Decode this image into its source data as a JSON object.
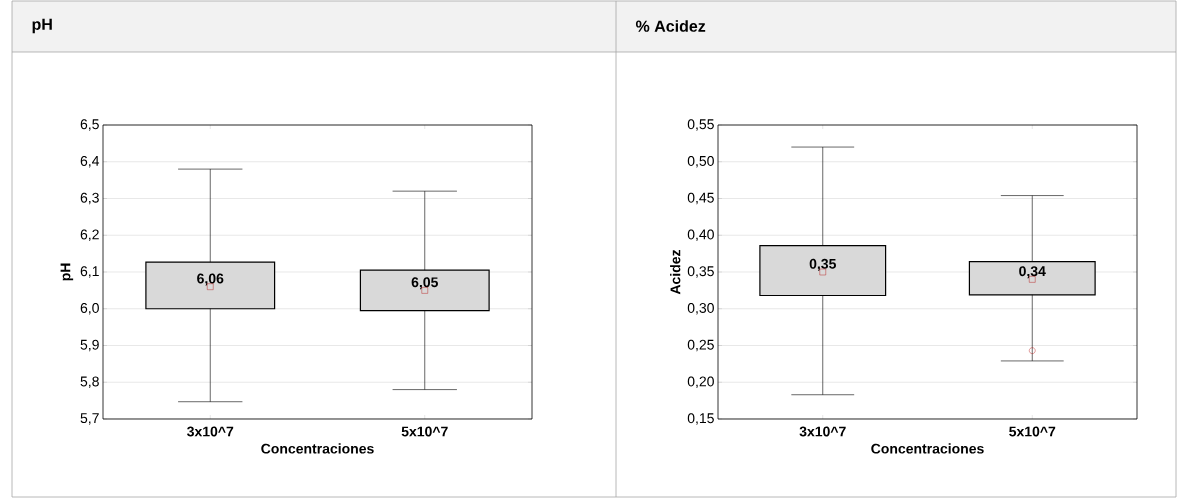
{
  "chart_data": [
    {
      "type": "box",
      "title": "pH",
      "xlabel": "Concentraciones",
      "ylabel": "pH",
      "categories": [
        "3x10^7",
        "5x10^7"
      ],
      "boxes": [
        {
          "low": 5.747,
          "q1": 6.0,
          "median": 6.06,
          "q3": 6.127,
          "high": 6.38
        },
        {
          "low": 5.78,
          "q1": 5.995,
          "median": 6.05,
          "q3": 6.105,
          "high": 6.32
        }
      ],
      "value_labels": [
        "6,06",
        "6,05"
      ],
      "ylim": [
        5.7,
        6.5
      ],
      "yticks": [
        {
          "value": 5.7,
          "label": "5,7"
        },
        {
          "value": 5.8,
          "label": "5,8"
        },
        {
          "value": 5.9,
          "label": "5,9"
        },
        {
          "value": 6.0,
          "label": "6,0"
        },
        {
          "value": 6.1,
          "label": "6,1"
        },
        {
          "value": 6.2,
          "label": "6,2"
        },
        {
          "value": 6.3,
          "label": "6,3"
        },
        {
          "value": 6.4,
          "label": "6,4"
        },
        {
          "value": 6.5,
          "label": "6,5"
        }
      ],
      "grid": "y",
      "marker": "square"
    },
    {
      "type": "box",
      "title": "% Acidez",
      "xlabel": "Concentraciones",
      "ylabel": "Acidez",
      "categories": [
        "3x10^7",
        "5x10^7"
      ],
      "boxes": [
        {
          "low": 0.183,
          "q1": 0.318,
          "median": 0.35,
          "q3": 0.386,
          "high": 0.52
        },
        {
          "low": 0.229,
          "q1": 0.319,
          "median": 0.34,
          "q3": 0.364,
          "high": 0.454,
          "outliers": [
            0.243
          ]
        }
      ],
      "value_labels": [
        "0,35",
        "0,34"
      ],
      "ylim": [
        0.15,
        0.55
      ],
      "yticks": [
        {
          "value": 0.15,
          "label": "0,15"
        },
        {
          "value": 0.2,
          "label": "0,20"
        },
        {
          "value": 0.25,
          "label": "0,25"
        },
        {
          "value": 0.3,
          "label": "0,30"
        },
        {
          "value": 0.35,
          "label": "0,35"
        },
        {
          "value": 0.4,
          "label": "0,40"
        },
        {
          "value": 0.45,
          "label": "0,45"
        },
        {
          "value": 0.5,
          "label": "0,50"
        },
        {
          "value": 0.55,
          "label": "0,55"
        }
      ],
      "grid": "y",
      "marker": "square"
    }
  ]
}
